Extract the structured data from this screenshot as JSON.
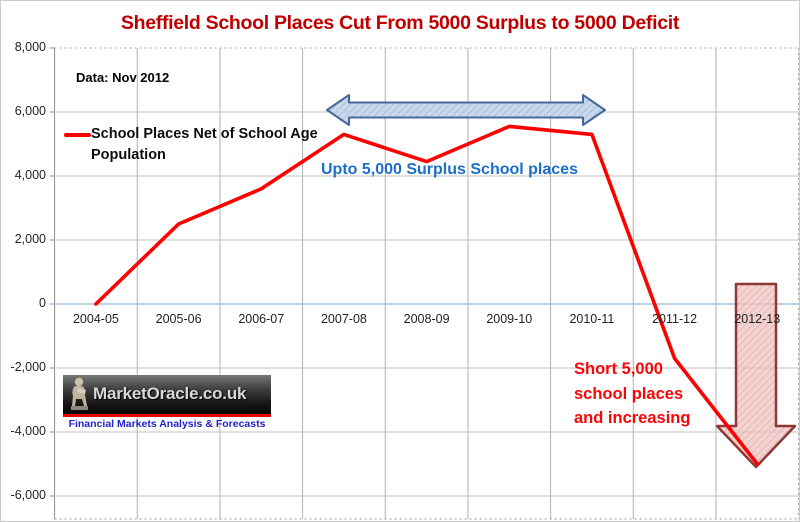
{
  "title": {
    "text": "Sheffield School Places Cut From 5000 Surplus to 5000 Deficit",
    "color": "#C00000"
  },
  "notes": {
    "data_source": "Data: Nov 2012",
    "surplus": {
      "text": "Upto 5,000 Surplus School places",
      "color": "#1B6FC9"
    },
    "deficit": {
      "lines": [
        "Short 5,000",
        "school places",
        "and increasing"
      ],
      "color": "#FB0606"
    }
  },
  "legend": {
    "lines": [
      "School Places Net of School Age",
      "Population"
    ],
    "marker_color": "#FF0000"
  },
  "logo": {
    "name": "MarketOracle.co.uk",
    "tagline": "Financial Markets Analysis & Forecasts",
    "tagline_color": "#2222CC",
    "stripe_color": "#E60000"
  },
  "chart_data": {
    "type": "line",
    "categories": [
      "2004-05",
      "2005-06",
      "2006-07",
      "2007-08",
      "2008-09",
      "2009-10",
      "2010-11",
      "2011-12",
      "2012-13"
    ],
    "series": [
      {
        "name": "School Places Net of School Age Population",
        "color": "#FF0000",
        "values": [
          0,
          2500,
          3600,
          5300,
          4450,
          5550,
          5300,
          -1700,
          -5000
        ]
      }
    ],
    "ylim": [
      -6000,
      8000
    ],
    "ytick_values": [
      8000,
      6000,
      4000,
      2000,
      0,
      -2000,
      -4000,
      -6000
    ],
    "ytick_labels": [
      "8,000",
      "6,000",
      "4,000",
      "2,000",
      "0",
      "-2,000",
      "-4,000",
      "-6,000"
    ],
    "grid": true,
    "zero_line_color": "#A8C4E4",
    "gridline_color": "#c0c0c0",
    "legend_position": "inside top-left",
    "shapes": [
      {
        "kind": "double-headed-horizontal-arrow",
        "meaning": "span of surplus years 2007-08 to 2010-11",
        "fill": "#C3D4E8",
        "border": "#46689E"
      },
      {
        "kind": "large-down-arrow",
        "meaning": "plunge to deficit at 2012-13",
        "fill": "#F0C7C5",
        "border": "#8E3937"
      }
    ]
  }
}
